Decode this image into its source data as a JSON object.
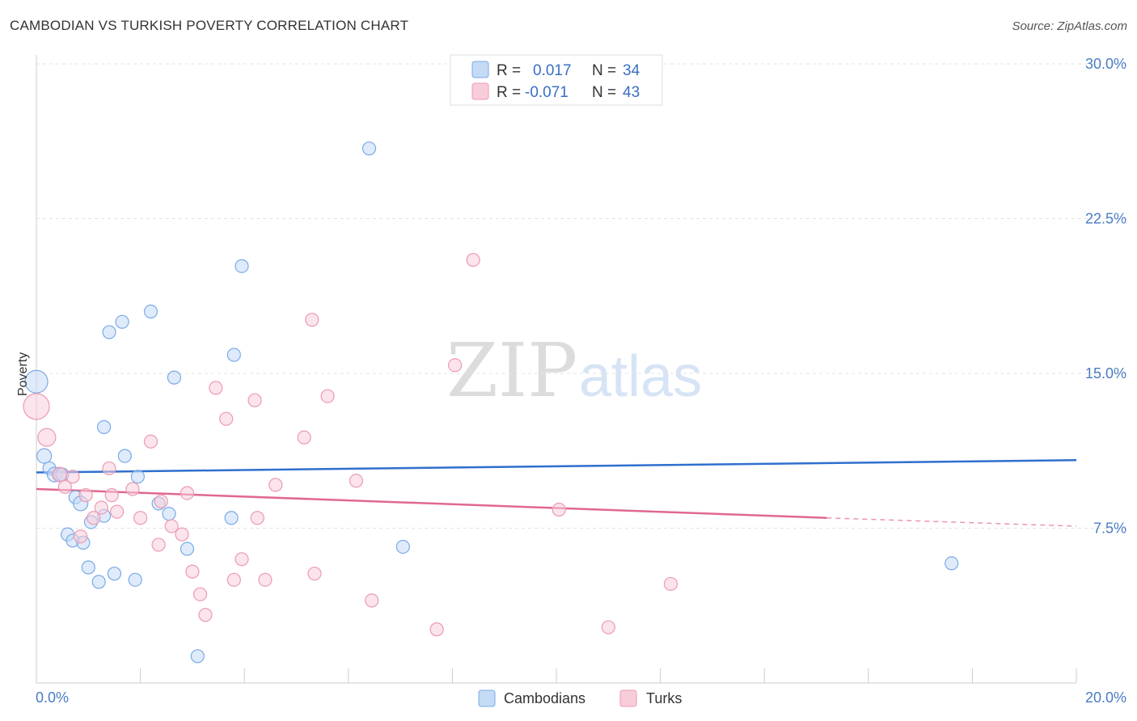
{
  "title": "CAMBODIAN VS TURKISH POVERTY CORRELATION CHART",
  "source": "Source: ZipAtlas.com",
  "watermark": {
    "zip": "ZIP",
    "atlas": "atlas"
  },
  "chart_data": {
    "type": "scatter",
    "title": "CAMBODIAN VS TURKISH POVERTY CORRELATION CHART",
    "xlabel": "",
    "ylabel": "Poverty",
    "xlim": [
      0,
      20
    ],
    "ylim": [
      0,
      31
    ],
    "x_tick_labels": [
      "0.0%",
      "20.0%"
    ],
    "y_ticks": [
      7.5,
      15.0,
      22.5,
      30.0
    ],
    "y_tick_labels": [
      "7.5%",
      "15.0%",
      "22.5%",
      "30.0%"
    ],
    "grid": true,
    "legend_position": "top-center",
    "series": [
      {
        "name": "Cambodians",
        "color": "#7aaae8",
        "fill": "#c5daf5",
        "r": "0.017",
        "n": "34",
        "trend": {
          "x": [
            0.0,
            20.0
          ],
          "y": [
            10.2,
            10.8
          ],
          "color": "#2f6fcf"
        },
        "points": [
          [
            0.0,
            14.6,
            14
          ],
          [
            0.15,
            11.0,
            9
          ],
          [
            0.25,
            10.4,
            8
          ],
          [
            0.35,
            10.1,
            9
          ],
          [
            0.45,
            10.1,
            8
          ],
          [
            0.75,
            9.0,
            8
          ],
          [
            0.85,
            8.7,
            9
          ],
          [
            0.6,
            7.2,
            8
          ],
          [
            0.7,
            6.9,
            8
          ],
          [
            0.9,
            6.8,
            8
          ],
          [
            1.05,
            7.8,
            8
          ],
          [
            1.3,
            8.1,
            8
          ],
          [
            1.0,
            5.6,
            8
          ],
          [
            1.2,
            4.9,
            8
          ],
          [
            1.5,
            5.3,
            8
          ],
          [
            1.9,
            5.0,
            8
          ],
          [
            1.3,
            12.4,
            8
          ],
          [
            1.4,
            17.0,
            8
          ],
          [
            1.65,
            17.5,
            8
          ],
          [
            2.2,
            18.0,
            8
          ],
          [
            1.7,
            11.0,
            8
          ],
          [
            1.95,
            10.0,
            8
          ],
          [
            2.35,
            8.7,
            8
          ],
          [
            2.55,
            8.2,
            8
          ],
          [
            2.65,
            14.8,
            8
          ],
          [
            2.9,
            6.5,
            8
          ],
          [
            3.1,
            1.3,
            8
          ],
          [
            3.75,
            8.0,
            8
          ],
          [
            3.8,
            15.9,
            8
          ],
          [
            3.95,
            20.2,
            8
          ],
          [
            6.4,
            25.9,
            8
          ],
          [
            7.05,
            6.6,
            8
          ],
          [
            17.6,
            5.8,
            8
          ],
          [
            0.5,
            10.1,
            8
          ]
        ]
      },
      {
        "name": "Turks",
        "color": "#ec9ab3",
        "fill": "#f8cdda",
        "r": "-0.071",
        "n": "43",
        "trend": {
          "x": [
            0.0,
            15.2
          ],
          "y": [
            9.4,
            8.0
          ],
          "color": "#e0688f"
        },
        "trend_dashed": {
          "x": [
            15.2,
            20.0
          ],
          "y": [
            8.0,
            7.6
          ]
        },
        "points": [
          [
            0.0,
            13.4,
            16
          ],
          [
            0.2,
            11.9,
            11
          ],
          [
            0.45,
            10.1,
            9
          ],
          [
            0.7,
            10.0,
            8
          ],
          [
            0.55,
            9.5,
            8
          ],
          [
            0.85,
            7.1,
            8
          ],
          [
            0.95,
            9.1,
            8
          ],
          [
            1.1,
            8.0,
            8
          ],
          [
            1.25,
            8.5,
            8
          ],
          [
            1.4,
            10.4,
            8
          ],
          [
            1.45,
            9.1,
            8
          ],
          [
            1.55,
            8.3,
            8
          ],
          [
            1.85,
            9.4,
            8
          ],
          [
            2.0,
            8.0,
            8
          ],
          [
            2.2,
            11.7,
            8
          ],
          [
            2.35,
            6.7,
            8
          ],
          [
            2.4,
            8.8,
            8
          ],
          [
            2.6,
            7.6,
            8
          ],
          [
            2.8,
            7.2,
            8
          ],
          [
            2.9,
            9.2,
            8
          ],
          [
            3.0,
            5.4,
            8
          ],
          [
            3.15,
            4.3,
            8
          ],
          [
            3.25,
            3.3,
            8
          ],
          [
            3.45,
            14.3,
            8
          ],
          [
            3.65,
            12.8,
            8
          ],
          [
            3.8,
            5.0,
            8
          ],
          [
            3.95,
            6.0,
            8
          ],
          [
            4.2,
            13.7,
            8
          ],
          [
            4.25,
            8.0,
            8
          ],
          [
            4.4,
            5.0,
            8
          ],
          [
            4.6,
            9.6,
            8
          ],
          [
            5.15,
            11.9,
            8
          ],
          [
            5.3,
            17.6,
            8
          ],
          [
            5.35,
            5.3,
            8
          ],
          [
            5.6,
            13.9,
            8
          ],
          [
            6.15,
            9.8,
            8
          ],
          [
            6.45,
            4.0,
            8
          ],
          [
            7.7,
            2.6,
            8
          ],
          [
            8.05,
            15.4,
            8
          ],
          [
            8.4,
            20.5,
            8
          ],
          [
            10.05,
            8.4,
            8
          ],
          [
            11.0,
            2.7,
            8
          ],
          [
            12.2,
            4.8,
            8
          ]
        ]
      }
    ]
  }
}
